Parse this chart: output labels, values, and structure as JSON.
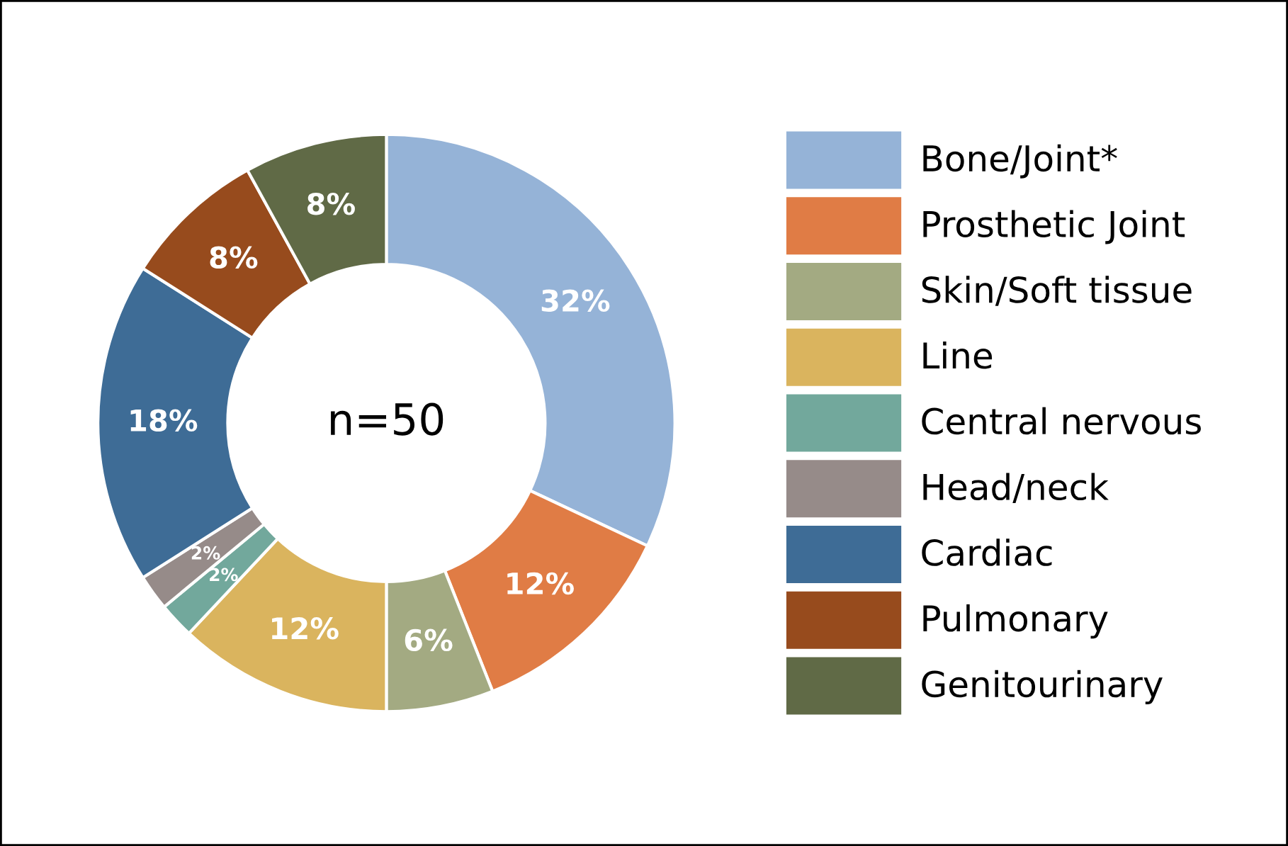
{
  "chart_data": {
    "type": "donut",
    "categories": [
      "Bone/Joint*",
      "Prosthetic Joint",
      "Skin/Soft tissue",
      "Line",
      "Central nervous",
      "Head/neck",
      "Cardiac",
      "Pulmonary",
      "Genitourinary"
    ],
    "values": [
      32,
      12,
      6,
      12,
      2,
      2,
      18,
      8,
      8
    ],
    "colors": [
      "#95b3d7",
      "#e07c45",
      "#a3aa82",
      "#dab45e",
      "#72a89c",
      "#968b89",
      "#3e6c96",
      "#974b1d",
      "#606a46"
    ],
    "value_labels": [
      "32%",
      "12%",
      "6%",
      "12%",
      "2%",
      "2%",
      "18%",
      "8%",
      "8%"
    ],
    "legend": "right",
    "annotations": [
      "n=50"
    ]
  }
}
